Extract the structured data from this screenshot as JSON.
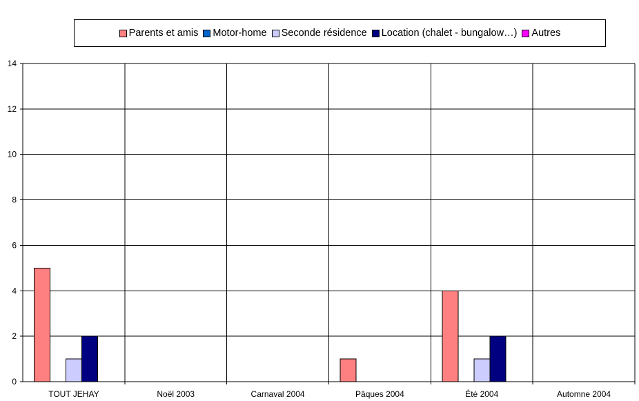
{
  "chart_data": {
    "type": "bar",
    "title": "",
    "xlabel": "",
    "ylabel": "",
    "ylim": [
      0,
      14
    ],
    "yticks": [
      0,
      2,
      4,
      6,
      8,
      10,
      12,
      14
    ],
    "grid": true,
    "legend_position": "top",
    "categories": [
      "TOUT JEHAY",
      "Noël 2003",
      "Carnaval 2004",
      "Pâques 2004",
      "Été 2004",
      "Automne 2004"
    ],
    "series": [
      {
        "name": "Parents et amis",
        "color": "#ff8080",
        "values": [
          5,
          0,
          0,
          1,
          4,
          0
        ]
      },
      {
        "name": "Motor-home",
        "color": "#0066cc",
        "values": [
          0,
          0,
          0,
          0,
          0,
          0
        ]
      },
      {
        "name": "Seconde résidence",
        "color": "#ccccff",
        "values": [
          1,
          0,
          0,
          0,
          1,
          0
        ]
      },
      {
        "name": "Location (chalet - bungalow…)",
        "color": "#000080",
        "values": [
          2,
          0,
          0,
          0,
          2,
          0
        ]
      },
      {
        "name": "Autres",
        "color": "#ff00ff",
        "values": [
          0,
          0,
          0,
          0,
          0,
          0
        ]
      }
    ]
  }
}
